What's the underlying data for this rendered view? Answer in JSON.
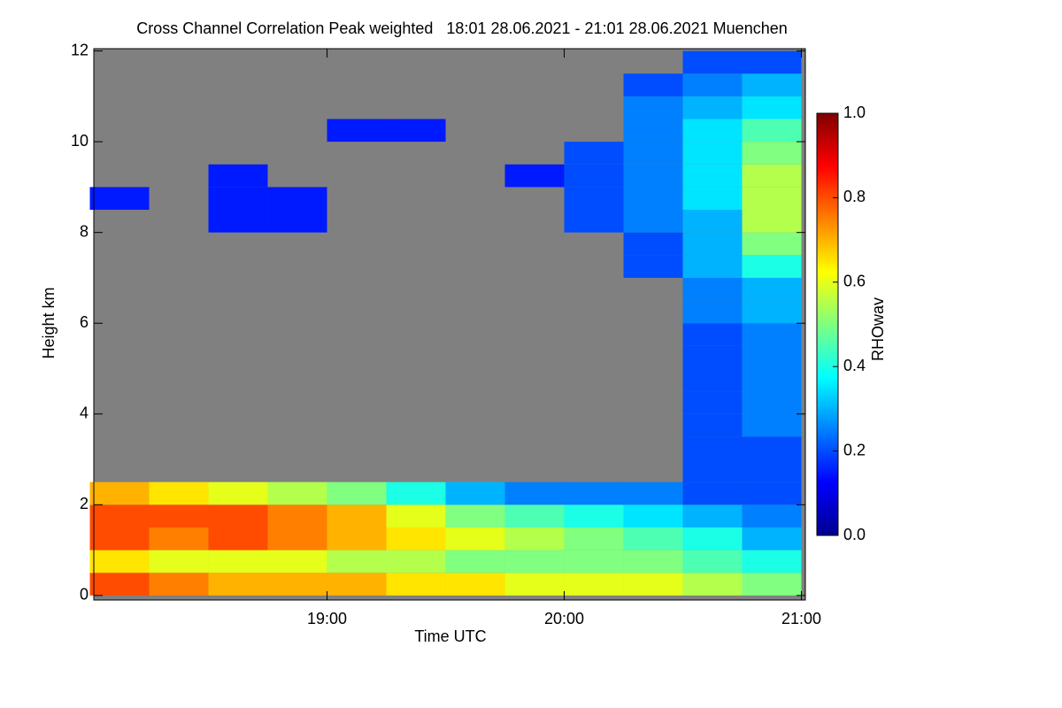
{
  "chart_data": {
    "type": "heatmap",
    "title": "Cross Channel Correlation Peak weighted   18:01 28.06.2021 - 21:01 28.06.2021 Muenchen",
    "x_label": "Time UTC",
    "y_label": "Height km",
    "colorbar_label": "RHOwav",
    "colormap": "jet",
    "background": "#808080",
    "x": [
      18.125,
      18.375,
      18.625,
      18.875,
      19.125,
      19.375,
      19.625,
      19.875,
      20.125,
      20.375,
      20.625,
      20.875
    ],
    "y": [
      0.25,
      0.75,
      1.25,
      1.75,
      2.25,
      2.75,
      3.25,
      3.75,
      4.25,
      4.75,
      5.25,
      5.75,
      6.25,
      6.75,
      7.25,
      7.75,
      8.25,
      8.75,
      9.25,
      9.75,
      10.25,
      10.75,
      11.25,
      11.75
    ],
    "values": [
      [
        0.8,
        0.75,
        0.7,
        0.7,
        0.7,
        0.65,
        0.65,
        0.6,
        0.6,
        0.6,
        0.55,
        0.5
      ],
      [
        0.65,
        0.6,
        0.6,
        0.6,
        0.55,
        0.55,
        0.5,
        0.5,
        0.5,
        0.5,
        0.45,
        0.4
      ],
      [
        0.8,
        0.75,
        0.8,
        0.75,
        0.7,
        0.65,
        0.6,
        0.55,
        0.5,
        0.45,
        0.4,
        0.3
      ],
      [
        0.8,
        0.8,
        0.8,
        0.75,
        0.7,
        0.6,
        0.5,
        0.45,
        0.4,
        0.35,
        0.3,
        0.25
      ],
      [
        0.7,
        0.65,
        0.6,
        0.55,
        0.5,
        0.4,
        0.3,
        0.25,
        0.25,
        0.25,
        0.2,
        0.2
      ],
      [
        null,
        null,
        null,
        null,
        null,
        null,
        null,
        null,
        null,
        null,
        0.2,
        0.2
      ],
      [
        null,
        null,
        null,
        null,
        null,
        null,
        null,
        null,
        null,
        null,
        0.2,
        0.2
      ],
      [
        null,
        null,
        null,
        null,
        null,
        null,
        null,
        null,
        null,
        null,
        0.2,
        0.25
      ],
      [
        null,
        null,
        null,
        null,
        null,
        null,
        null,
        null,
        null,
        null,
        0.2,
        0.25
      ],
      [
        null,
        null,
        null,
        null,
        null,
        null,
        null,
        null,
        null,
        null,
        0.2,
        0.25
      ],
      [
        null,
        null,
        null,
        null,
        null,
        null,
        null,
        null,
        null,
        null,
        0.2,
        0.25
      ],
      [
        null,
        null,
        null,
        null,
        null,
        null,
        null,
        null,
        null,
        null,
        0.2,
        0.25
      ],
      [
        null,
        null,
        null,
        null,
        null,
        null,
        null,
        null,
        null,
        null,
        0.25,
        0.3
      ],
      [
        null,
        null,
        null,
        null,
        null,
        null,
        null,
        null,
        null,
        null,
        0.25,
        0.3
      ],
      [
        null,
        null,
        null,
        null,
        null,
        null,
        null,
        null,
        null,
        0.2,
        0.3,
        0.4
      ],
      [
        null,
        null,
        null,
        null,
        null,
        null,
        null,
        null,
        null,
        0.2,
        0.3,
        0.5
      ],
      [
        null,
        null,
        0.15,
        0.15,
        null,
        null,
        null,
        null,
        0.2,
        0.25,
        0.3,
        0.55
      ],
      [
        0.15,
        null,
        0.15,
        0.15,
        null,
        null,
        null,
        null,
        0.2,
        0.25,
        0.35,
        0.55
      ],
      [
        null,
        null,
        0.15,
        null,
        null,
        null,
        null,
        0.15,
        0.2,
        0.25,
        0.35,
        0.55
      ],
      [
        null,
        null,
        null,
        null,
        null,
        null,
        null,
        null,
        0.2,
        0.25,
        0.35,
        0.5
      ],
      [
        null,
        null,
        null,
        null,
        0.15,
        0.15,
        null,
        null,
        null,
        0.25,
        0.35,
        0.45
      ],
      [
        null,
        null,
        null,
        null,
        null,
        null,
        null,
        null,
        null,
        0.25,
        0.3,
        0.35
      ],
      [
        null,
        null,
        null,
        null,
        null,
        null,
        null,
        null,
        null,
        0.2,
        0.25,
        0.3
      ],
      [
        null,
        null,
        null,
        null,
        null,
        null,
        null,
        null,
        null,
        null,
        0.2,
        0.2
      ]
    ],
    "xlim": [
      18.0167,
      21.0167
    ],
    "xticks": [
      {
        "value": 19,
        "label": "19:00"
      },
      {
        "value": 20,
        "label": "20:00"
      },
      {
        "value": 21,
        "label": "21:00"
      }
    ],
    "ylim": [
      -0.1,
      12.05
    ],
    "yticks": [
      0,
      2,
      4,
      6,
      8,
      10,
      12
    ],
    "clim": [
      0,
      1
    ],
    "cticks": [
      {
        "value": 0,
        "label": "0.0"
      },
      {
        "value": 0.2,
        "label": "0.2"
      },
      {
        "value": 0.4,
        "label": "0.4"
      },
      {
        "value": 0.6,
        "label": "0.6"
      },
      {
        "value": 0.8,
        "label": "0.8"
      },
      {
        "value": 1,
        "label": "1.0"
      }
    ]
  }
}
